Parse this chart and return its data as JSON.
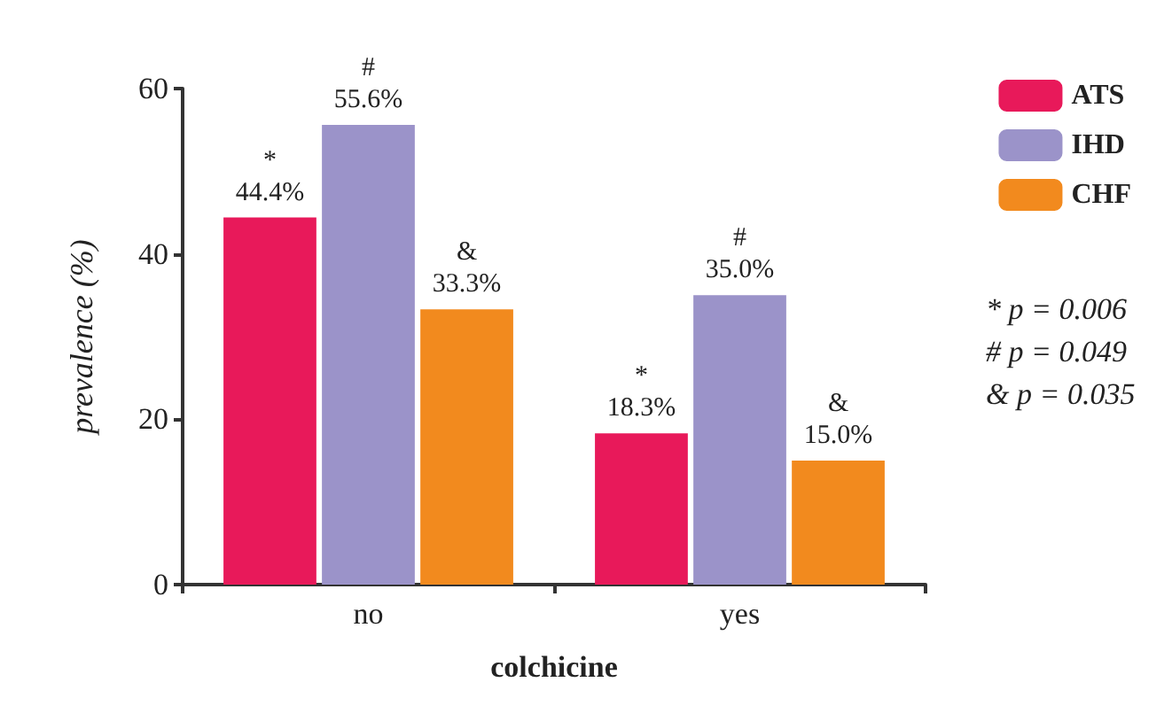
{
  "chart_data": {
    "type": "bar",
    "xlabel": "colchicine",
    "ylabel": "prevalence (%)",
    "categories": [
      "no",
      "yes"
    ],
    "series": [
      {
        "name": "ATS",
        "color": "#e8195a",
        "values": [
          44.4,
          18.3
        ],
        "value_labels": [
          "*\n44.4%",
          "*\n18.3%"
        ]
      },
      {
        "name": "IHD",
        "color": "#9b93c9",
        "values": [
          55.6,
          35.0
        ],
        "value_labels": [
          "#\n55.6%",
          "#\n35.0%"
        ]
      },
      {
        "name": "CHF",
        "color": "#f28a1e",
        "values": [
          33.3,
          15.0
        ],
        "value_labels": [
          "&\n33.3%",
          "&\n15.0%"
        ]
      }
    ],
    "ylim": [
      0,
      60
    ],
    "yticks": [
      0,
      20,
      40,
      60
    ],
    "grid": false,
    "legend": "top right",
    "annotations": [
      "* p = 0.006",
      "# p = 0.049",
      "& p = 0.035"
    ]
  }
}
